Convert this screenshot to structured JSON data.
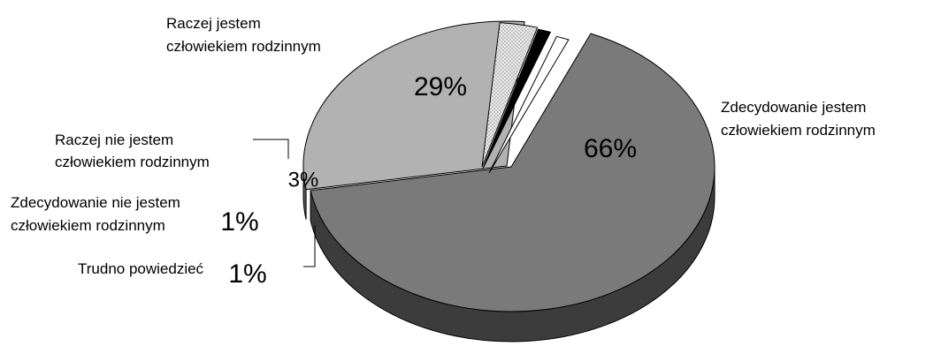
{
  "chart_data": {
    "type": "pie",
    "title": "",
    "style": "3d-exploded",
    "legend": "none",
    "slices": [
      {
        "label_lines": [
          "Zdecydowanie jestem",
          "człowiekiem rodzinnym"
        ],
        "value": 66,
        "value_label": "66%",
        "color": "#7a7a7a",
        "side_color": "#3c3c3c"
      },
      {
        "label_lines": [
          "Raczej jestem",
          "człowiekiem rodzinnym"
        ],
        "value": 29,
        "value_label": "29%",
        "color": "#b2b2b2",
        "side_color": "#5a5a5a"
      },
      {
        "label_lines": [
          "Raczej nie jestem",
          "człowiekiem rodzinnym"
        ],
        "value": 3,
        "value_label": "3%",
        "color": "#e6e6e6",
        "side_color": "#111111",
        "pattern": "dots"
      },
      {
        "label_lines": [
          "Zdecydowanie nie jestem",
          "człowiekiem rodzinnym"
        ],
        "value": 1,
        "value_label": "1%",
        "color": "#000000",
        "side_color": "#000000"
      },
      {
        "label_lines": [
          "Trudno powiedzieć"
        ],
        "value": 1,
        "value_label": "1%",
        "color": "#ffffff",
        "side_color": "#8c8c8c"
      }
    ]
  }
}
